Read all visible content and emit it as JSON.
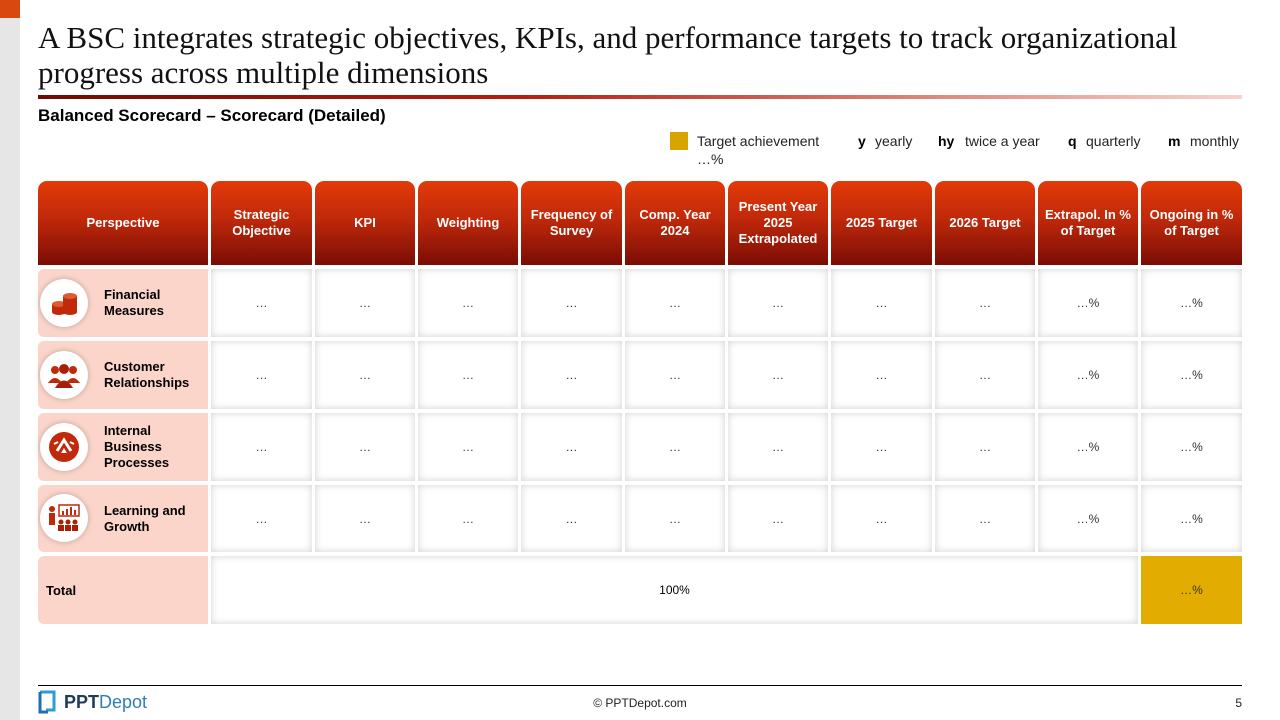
{
  "title": "A BSC integrates strategic objectives, KPIs, and performance targets to track organizational progress across multiple dimensions",
  "subtitle": "Balanced Scorecard – Scorecard (Detailed)",
  "legend": {
    "swatch_color": "#d9a400",
    "target_label": "Target achievement",
    "target_value": "…%",
    "items": [
      {
        "key": "y",
        "label": "yearly"
      },
      {
        "key": "hy",
        "label": "twice a year"
      },
      {
        "key": "q",
        "label": "quarterly"
      },
      {
        "key": "m",
        "label": "monthly"
      }
    ]
  },
  "columns": [
    "Perspective",
    "Strategic Objective",
    "KPI",
    "Weighting",
    "Frequency of Survey",
    "Comp. Year 2024",
    "Present Year 2025 Extrapolated",
    "2025 Target",
    "2026 Target",
    "Extrapol. In % of Target",
    "Ongoing in % of Target"
  ],
  "rows": [
    {
      "perspective": "Financial Measures",
      "icon": "coins-icon",
      "cells": [
        "…",
        "…",
        "…",
        "…",
        "…",
        "…",
        "…",
        "…",
        "…%",
        "…%"
      ]
    },
    {
      "perspective": "Customer Relationships",
      "icon": "people-icon",
      "cells": [
        "…",
        "…",
        "…",
        "…",
        "…",
        "…",
        "…",
        "…",
        "…%",
        "…%"
      ]
    },
    {
      "perspective": "Internal Business Processes",
      "icon": "process-icon",
      "cells": [
        "…",
        "…",
        "…",
        "…",
        "…",
        "…",
        "…",
        "…",
        "…%",
        "…%"
      ]
    },
    {
      "perspective": "Learning and Growth",
      "icon": "training-icon",
      "cells": [
        "…",
        "…",
        "…",
        "…",
        "…",
        "…",
        "…",
        "…",
        "…%",
        "…%"
      ]
    }
  ],
  "total": {
    "label": "Total",
    "weighting": "100%",
    "result": "…%"
  },
  "colors": {
    "accent": "#c0290a",
    "perspective_bg": "#fbd5c9",
    "total_highlight": "#e2ad00"
  },
  "footer": {
    "logo_ppt": "PPT",
    "logo_depot": "Depot",
    "copyright": "© PPTDepot.com",
    "page": "5"
  }
}
